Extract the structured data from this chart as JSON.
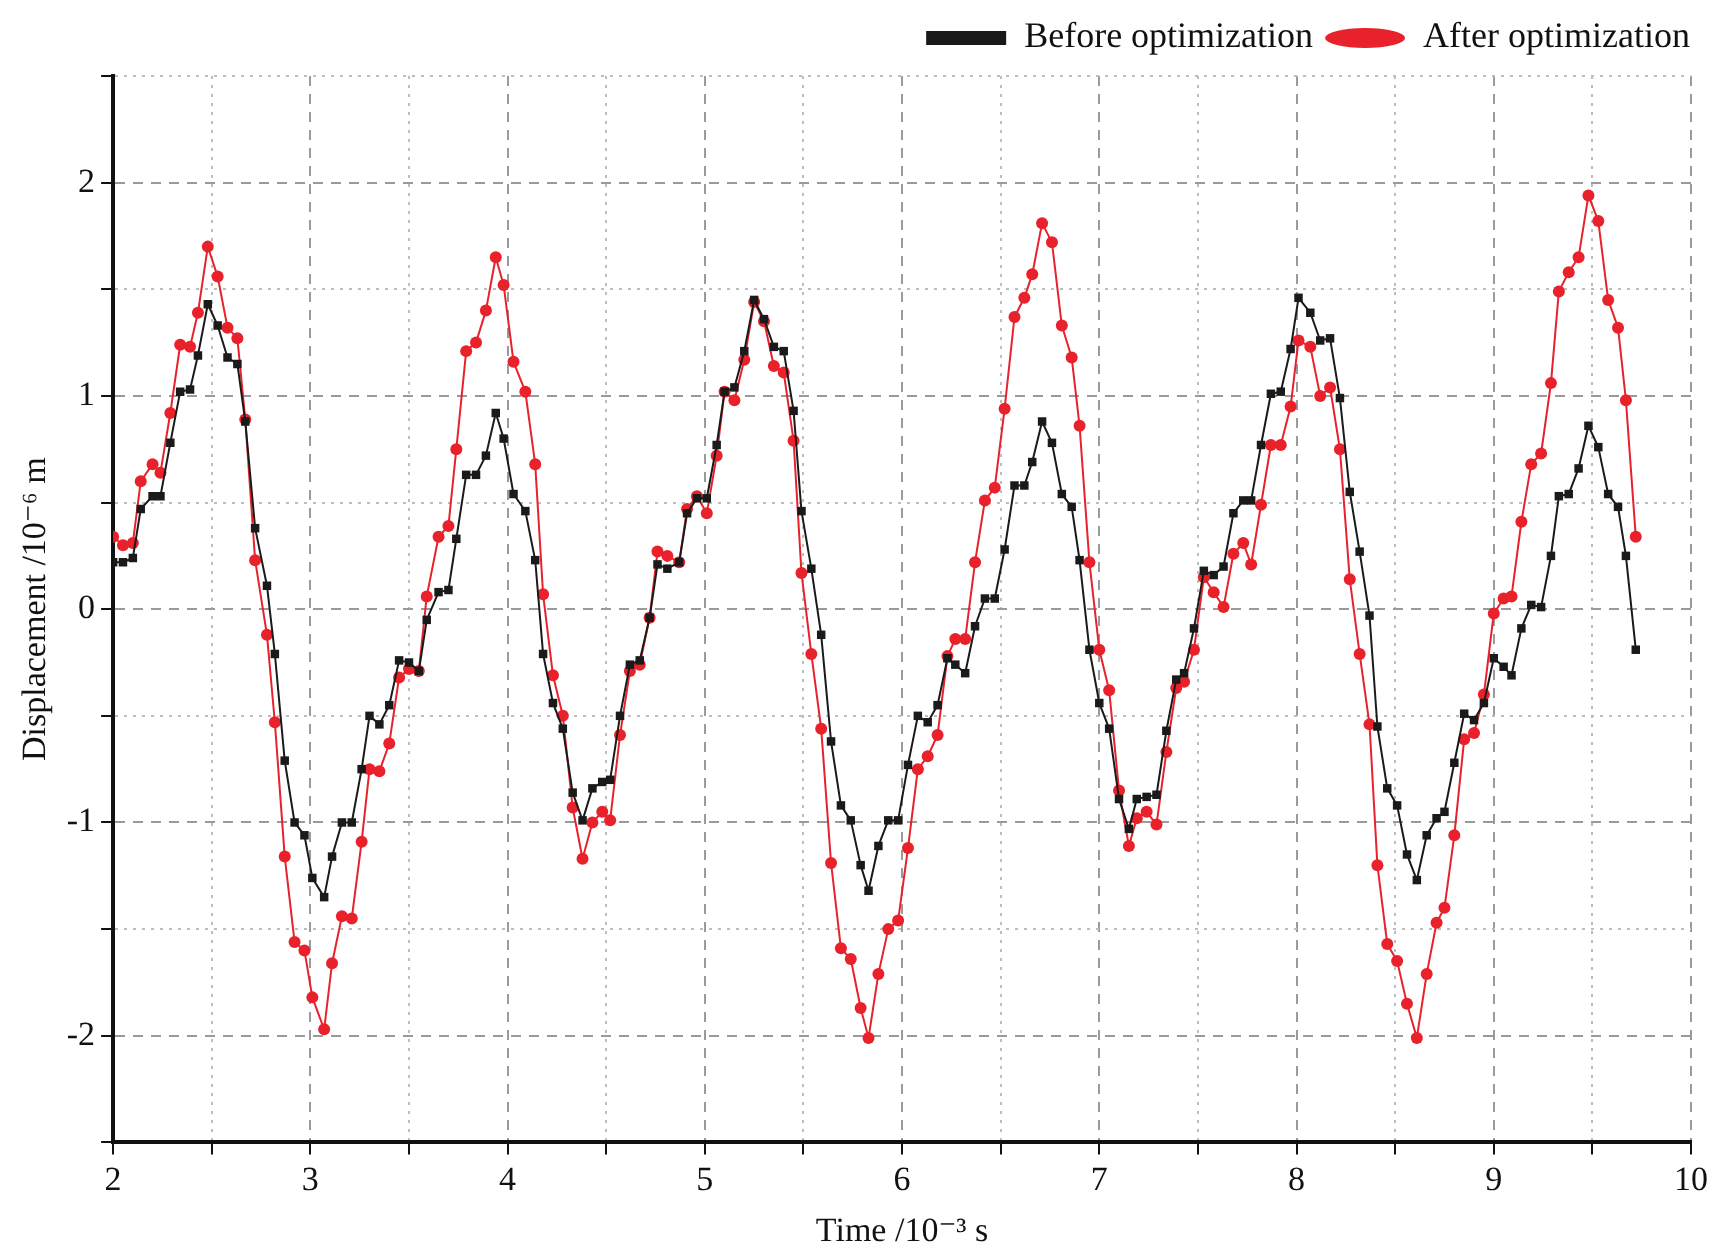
{
  "chart_data": {
    "type": "line",
    "xlabel": "Time /10⁻³ s",
    "ylabel": "Displacement /10⁻⁶ m",
    "x": [
      2.0,
      2.05,
      2.1,
      2.14,
      2.2,
      2.24,
      2.29,
      2.34,
      2.39,
      2.43,
      2.48,
      2.53,
      2.58,
      2.63,
      2.67,
      2.72,
      2.78,
      2.82,
      2.87,
      2.92,
      2.97,
      3.01,
      3.07,
      3.11,
      3.16,
      3.21,
      3.26,
      3.3,
      3.35,
      3.4,
      3.45,
      3.5,
      3.55,
      3.59,
      3.65,
      3.7,
      3.74,
      3.79,
      3.84,
      3.89,
      3.94,
      3.98,
      4.03,
      4.09,
      4.14,
      4.18,
      4.23,
      4.28,
      4.33,
      4.38,
      4.43,
      4.48,
      4.52,
      4.57,
      4.62,
      4.67,
      4.72,
      4.76,
      4.81,
      4.87,
      4.91,
      4.96,
      5.01,
      5.06,
      5.1,
      5.15,
      5.2,
      5.25,
      5.3,
      5.35,
      5.4,
      5.45,
      5.49,
      5.54,
      5.59,
      5.64,
      5.69,
      5.74,
      5.79,
      5.83,
      5.88,
      5.93,
      5.98,
      6.03,
      6.08,
      6.13,
      6.18,
      6.23,
      6.27,
      6.32,
      6.37,
      6.42,
      6.47,
      6.52,
      6.57,
      6.62,
      6.66,
      6.71,
      6.76,
      6.81,
      6.86,
      6.9,
      6.95,
      7.0,
      7.05,
      7.1,
      7.15,
      7.19,
      7.24,
      7.29,
      7.34,
      7.39,
      7.43,
      7.48,
      7.53,
      7.58,
      7.63,
      7.68,
      7.73,
      7.77,
      7.82,
      7.87,
      7.92,
      7.97,
      8.01,
      8.07,
      8.12,
      8.17,
      8.22,
      8.27,
      8.32,
      8.37,
      8.41,
      8.46,
      8.51,
      8.56,
      8.61,
      8.66,
      8.71,
      8.75,
      8.8,
      8.85,
      8.9,
      8.95,
      9.0,
      9.05,
      9.09,
      9.14,
      9.19,
      9.24,
      9.29,
      9.33,
      9.38,
      9.43,
      9.48,
      9.53,
      9.58,
      9.63,
      9.67,
      9.72
    ],
    "series": [
      {
        "name": "Before optimization",
        "color": "#1a1a1a",
        "marker": "square",
        "values": [
          0.22,
          0.22,
          0.24,
          0.47,
          0.53,
          0.53,
          0.78,
          1.02,
          1.03,
          1.19,
          1.43,
          1.33,
          1.18,
          1.15,
          0.88,
          0.38,
          0.11,
          -0.21,
          -0.71,
          -1.0,
          -1.06,
          -1.26,
          -1.35,
          -1.16,
          -1.0,
          -1.0,
          -0.75,
          -0.5,
          -0.54,
          -0.45,
          -0.24,
          -0.25,
          -0.29,
          -0.05,
          0.08,
          0.09,
          0.33,
          0.63,
          0.63,
          0.72,
          0.92,
          0.8,
          0.54,
          0.46,
          0.23,
          -0.21,
          -0.44,
          -0.56,
          -0.86,
          -0.99,
          -0.84,
          -0.81,
          -0.8,
          -0.5,
          -0.26,
          -0.24,
          -0.04,
          0.21,
          0.19,
          0.22,
          0.45,
          0.52,
          0.52,
          0.77,
          1.02,
          1.04,
          1.21,
          1.45,
          1.36,
          1.23,
          1.21,
          0.93,
          0.46,
          0.19,
          -0.12,
          -0.62,
          -0.92,
          -0.99,
          -1.2,
          -1.32,
          -1.11,
          -0.99,
          -0.99,
          -0.73,
          -0.5,
          -0.53,
          -0.45,
          -0.23,
          -0.26,
          -0.3,
          -0.08,
          0.05,
          0.05,
          0.28,
          0.58,
          0.58,
          0.69,
          0.88,
          0.78,
          0.54,
          0.48,
          0.23,
          -0.19,
          -0.44,
          -0.56,
          -0.89,
          -1.03,
          -0.89,
          -0.88,
          -0.87,
          -0.57,
          -0.33,
          -0.3,
          -0.09,
          0.18,
          0.16,
          0.2,
          0.45,
          0.51,
          0.51,
          0.77,
          1.01,
          1.02,
          1.22,
          1.46,
          1.39,
          1.26,
          1.27,
          0.99,
          0.55,
          0.27,
          -0.03,
          -0.55,
          -0.84,
          -0.92,
          -1.15,
          -1.27,
          -1.06,
          -0.98,
          -0.95,
          -0.72,
          -0.49,
          -0.52,
          -0.44,
          -0.23,
          -0.27,
          -0.31,
          -0.09,
          0.02,
          0.01,
          0.25,
          0.53,
          0.54,
          0.66,
          0.86,
          0.76,
          0.54,
          0.48,
          0.25,
          -0.19
        ]
      },
      {
        "name": "After optimization",
        "color": "#e8212a",
        "marker": "circle",
        "values": [
          0.34,
          0.3,
          0.31,
          0.6,
          0.68,
          0.64,
          0.92,
          1.24,
          1.23,
          1.39,
          1.7,
          1.56,
          1.32,
          1.27,
          0.89,
          0.23,
          -0.12,
          -0.53,
          -1.16,
          -1.56,
          -1.6,
          -1.82,
          -1.97,
          -1.66,
          -1.44,
          -1.45,
          -1.09,
          -0.75,
          -0.76,
          -0.63,
          -0.32,
          -0.28,
          -0.29,
          0.06,
          0.34,
          0.39,
          0.75,
          1.21,
          1.25,
          1.4,
          1.65,
          1.52,
          1.16,
          1.02,
          0.68,
          0.07,
          -0.31,
          -0.5,
          -0.93,
          -1.17,
          -1.0,
          -0.95,
          -0.99,
          -0.59,
          -0.29,
          -0.26,
          -0.04,
          0.27,
          0.25,
          0.22,
          0.47,
          0.53,
          0.45,
          0.72,
          1.02,
          0.98,
          1.17,
          1.44,
          1.35,
          1.14,
          1.11,
          0.79,
          0.17,
          -0.21,
          -0.56,
          -1.19,
          -1.59,
          -1.64,
          -1.87,
          -2.01,
          -1.71,
          -1.5,
          -1.46,
          -1.12,
          -0.75,
          -0.69,
          -0.59,
          -0.22,
          -0.14,
          -0.14,
          0.22,
          0.51,
          0.57,
          0.94,
          1.37,
          1.46,
          1.57,
          1.81,
          1.72,
          1.33,
          1.18,
          0.86,
          0.22,
          -0.19,
          -0.38,
          -0.85,
          -1.11,
          -0.98,
          -0.95,
          -1.01,
          -0.67,
          -0.37,
          -0.34,
          -0.19,
          0.15,
          0.08,
          0.01,
          0.26,
          0.31,
          0.21,
          0.49,
          0.77,
          0.77,
          0.95,
          1.26,
          1.23,
          1.0,
          1.04,
          0.75,
          0.14,
          -0.21,
          -0.54,
          -1.2,
          -1.57,
          -1.65,
          -1.85,
          -2.01,
          -1.71,
          -1.47,
          -1.4,
          -1.06,
          -0.61,
          -0.58,
          -0.4,
          -0.02,
          0.05,
          0.06,
          0.41,
          0.68,
          0.73,
          1.06,
          1.49,
          1.58,
          1.65,
          1.94,
          1.82,
          1.45,
          1.32,
          0.98,
          0.34
        ]
      }
    ],
    "xlim": [
      2,
      10
    ],
    "xticks": [
      2,
      {
        "value": 2.5,
        "label": null
      },
      3,
      {
        "value": 3.5,
        "label": null
      },
      4,
      {
        "value": 4.5,
        "label": null
      },
      5,
      {
        "value": 5.5,
        "label": null
      },
      6,
      {
        "value": 6.5,
        "label": null
      },
      7,
      {
        "value": 7.5,
        "label": null
      },
      8,
      {
        "value": 8.5,
        "label": null
      },
      9,
      {
        "value": 9.5,
        "label": null
      },
      10
    ],
    "ylim": [
      -2.5,
      2.5
    ],
    "yticks": [
      {
        "value": -2.5,
        "label": null
      },
      -2,
      {
        "value": -1.5,
        "label": null
      },
      -1,
      {
        "value": -0.5,
        "label": null
      },
      0,
      {
        "value": 0.5,
        "label": null
      },
      1,
      {
        "value": 1.5,
        "label": null
      },
      2,
      {
        "value": 2.5,
        "label": null
      }
    ],
    "grid": true,
    "legend": "top right",
    "line_style": "solid"
  }
}
